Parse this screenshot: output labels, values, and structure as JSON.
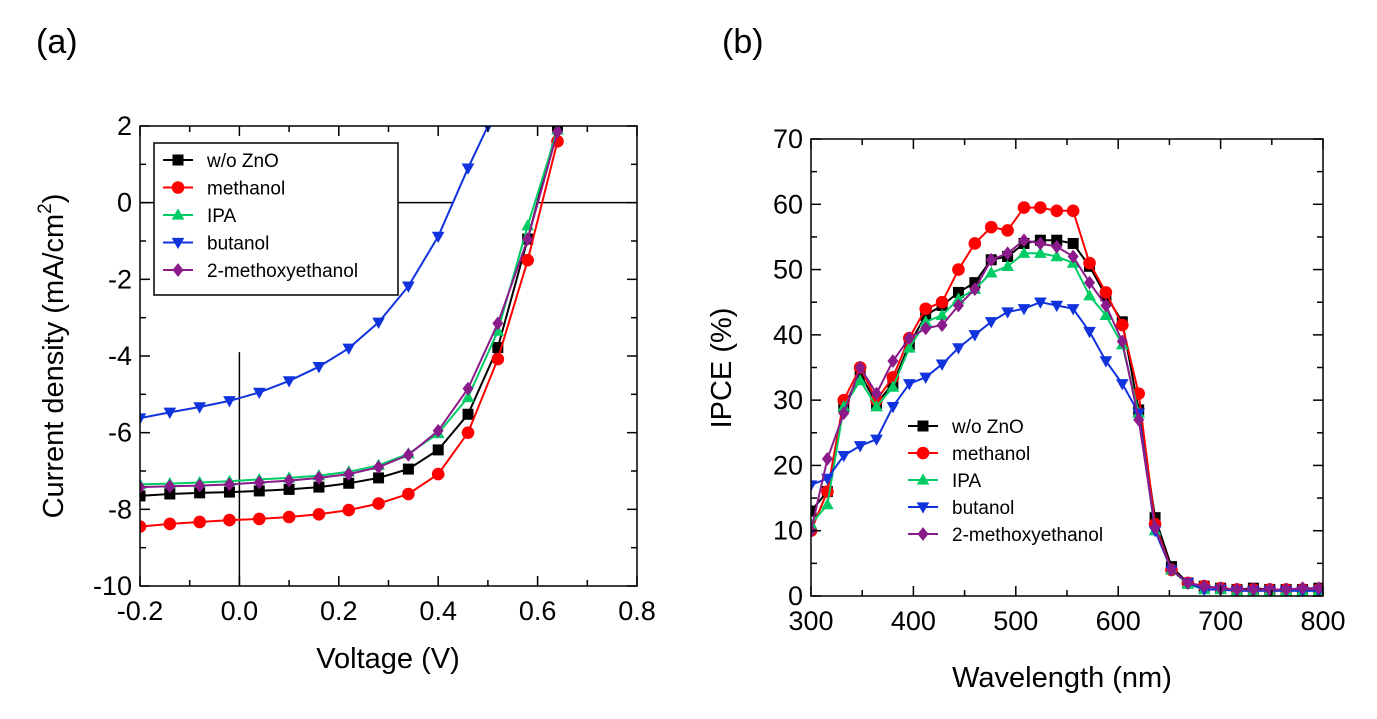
{
  "chart_data": [
    {
      "type": "line",
      "panel_label": "(a)",
      "xlabel": "Voltage (V)",
      "ylabel": "Current density (mA/cm",
      "ylabel_sup": "2",
      "ylabel_end": ")",
      "xlim": [
        -0.2,
        0.8
      ],
      "ylim": [
        -10,
        2
      ],
      "xticks": [
        "-0.2",
        "0.0",
        "0.2",
        "0.4",
        "0.6",
        "0.8"
      ],
      "xtick_values": [
        -0.2,
        0,
        0.2,
        0.4,
        0.6,
        0.8
      ],
      "yticks": [
        "-10",
        "-8",
        "-6",
        "-4",
        "-2",
        "0",
        "2"
      ],
      "ytick_values": [
        -10,
        -8,
        -6,
        -4,
        -2,
        0,
        2
      ],
      "legend_position": "top-left",
      "series": [
        {
          "name": "w/o ZnO",
          "color": "#000000",
          "marker": "square",
          "x": [
            -0.2,
            -0.14,
            -0.08,
            -0.02,
            0.04,
            0.1,
            0.16,
            0.22,
            0.28,
            0.34,
            0.4,
            0.46,
            0.52,
            0.58,
            0.64
          ],
          "y": [
            -7.65,
            -7.6,
            -7.57,
            -7.55,
            -7.52,
            -7.48,
            -7.42,
            -7.32,
            -7.18,
            -6.95,
            -6.45,
            -5.52,
            -3.78,
            -0.95,
            2.0
          ]
        },
        {
          "name": "methanol",
          "color": "#ff0000",
          "marker": "circle",
          "x": [
            -0.2,
            -0.14,
            -0.08,
            -0.02,
            0.04,
            0.1,
            0.16,
            0.22,
            0.28,
            0.34,
            0.4,
            0.46,
            0.52,
            0.58,
            0.64
          ],
          "y": [
            -8.45,
            -8.38,
            -8.33,
            -8.28,
            -8.25,
            -8.2,
            -8.13,
            -8.02,
            -7.85,
            -7.6,
            -7.08,
            -6.0,
            -4.08,
            -1.5,
            1.6
          ]
        },
        {
          "name": "IPA",
          "color": "#00cc66",
          "marker": "triangle-up",
          "x": [
            -0.2,
            -0.14,
            -0.08,
            -0.02,
            0.04,
            0.1,
            0.16,
            0.22,
            0.28,
            0.34,
            0.4,
            0.46,
            0.52,
            0.58,
            0.64
          ],
          "y": [
            -7.35,
            -7.33,
            -7.3,
            -7.27,
            -7.22,
            -7.18,
            -7.12,
            -7.02,
            -6.85,
            -6.55,
            -6.02,
            -5.08,
            -3.35,
            -0.6,
            1.9
          ]
        },
        {
          "name": "butanol",
          "color": "#1133dd",
          "marker": "triangle-down",
          "x": [
            -0.2,
            -0.14,
            -0.08,
            -0.02,
            0.04,
            0.1,
            0.16,
            0.22,
            0.28,
            0.34,
            0.4,
            0.46,
            0.5
          ],
          "y": [
            -5.62,
            -5.47,
            -5.33,
            -5.17,
            -4.95,
            -4.65,
            -4.28,
            -3.8,
            -3.12,
            -2.18,
            -0.88,
            0.9,
            2.0
          ]
        },
        {
          "name": "2-methoxyethanol",
          "color": "#8b1a8b",
          "marker": "diamond",
          "x": [
            -0.2,
            -0.14,
            -0.08,
            -0.02,
            0.04,
            0.1,
            0.16,
            0.22,
            0.28,
            0.34,
            0.4,
            0.46,
            0.52,
            0.58,
            0.64
          ],
          "y": [
            -7.42,
            -7.4,
            -7.38,
            -7.35,
            -7.3,
            -7.25,
            -7.18,
            -7.08,
            -6.9,
            -6.58,
            -5.95,
            -4.85,
            -3.15,
            -0.95,
            1.85
          ]
        }
      ]
    },
    {
      "type": "line",
      "panel_label": "(b)",
      "xlabel": "Wavelength (nm)",
      "ylabel": "IPCE (%)",
      "xlim": [
        300,
        800
      ],
      "ylim": [
        0,
        70
      ],
      "xticks": [
        "300",
        "400",
        "500",
        "600",
        "700",
        "800"
      ],
      "xtick_values": [
        300,
        400,
        500,
        600,
        700,
        800
      ],
      "yticks": [
        "0",
        "10",
        "20",
        "30",
        "40",
        "50",
        "60",
        "70"
      ],
      "ytick_values": [
        0,
        10,
        20,
        30,
        40,
        50,
        60,
        70
      ],
      "legend_position": "bottom-center",
      "series": [
        {
          "name": "w/o ZnO",
          "color": "#000000",
          "marker": "square",
          "x": [
            300,
            316,
            332,
            348,
            364,
            380,
            396,
            412,
            428,
            444,
            460,
            476,
            492,
            508,
            524,
            540,
            556,
            572,
            588,
            604,
            620,
            636,
            652,
            668,
            684,
            700,
            716,
            732,
            748,
            764,
            780,
            796
          ],
          "y": [
            13,
            16,
            29,
            34,
            29.5,
            32.5,
            38.5,
            43,
            44.5,
            46.5,
            48,
            51.5,
            52,
            54,
            54.5,
            54.5,
            54,
            50.5,
            46,
            42,
            28.5,
            12,
            4.5,
            2,
            1.5,
            1.2,
            1,
            1.2,
            1,
            1,
            1,
            1.2
          ]
        },
        {
          "name": "methanol",
          "color": "#ff0000",
          "marker": "circle",
          "x": [
            300,
            316,
            332,
            348,
            364,
            380,
            396,
            412,
            428,
            444,
            460,
            476,
            492,
            508,
            524,
            540,
            556,
            572,
            588,
            604,
            620,
            636,
            652,
            668,
            684,
            700,
            716,
            732,
            748,
            764,
            780,
            796
          ],
          "y": [
            10,
            16,
            30,
            35,
            30,
            33.5,
            39.5,
            44,
            45,
            50,
            54,
            56.5,
            56,
            59.5,
            59.5,
            59,
            59,
            51,
            46.5,
            41.5,
            31,
            11,
            4,
            2,
            1.5,
            1.2,
            1,
            1,
            1,
            1,
            1,
            1
          ]
        },
        {
          "name": "IPA",
          "color": "#00cc66",
          "marker": "triangle-up",
          "x": [
            300,
            316,
            332,
            348,
            364,
            380,
            396,
            412,
            428,
            444,
            460,
            476,
            492,
            508,
            524,
            540,
            556,
            572,
            588,
            604,
            620,
            636,
            652,
            668,
            684,
            700,
            716,
            732,
            748,
            764,
            780,
            796
          ],
          "y": [
            11,
            14,
            29,
            33,
            29,
            32,
            38,
            42,
            43,
            45.5,
            47,
            49.5,
            50.5,
            52.5,
            52.5,
            52,
            51,
            46,
            43,
            38.5,
            28,
            10,
            4,
            1.8,
            1,
            1,
            0.8,
            0.8,
            0.8,
            0.8,
            0.8,
            0.8
          ]
        },
        {
          "name": "butanol",
          "color": "#1133dd",
          "marker": "triangle-down",
          "x": [
            300,
            316,
            332,
            348,
            364,
            380,
            396,
            412,
            428,
            444,
            460,
            476,
            492,
            508,
            524,
            540,
            556,
            572,
            588,
            604,
            620,
            636,
            652,
            668,
            684,
            700,
            716,
            732,
            748,
            764,
            780,
            796
          ],
          "y": [
            17,
            18,
            21.5,
            23,
            24,
            29,
            32.5,
            33.5,
            35.5,
            38,
            40,
            42,
            43.5,
            44,
            45,
            44.5,
            44,
            40.5,
            36,
            32.5,
            28,
            10,
            4,
            2,
            1,
            1,
            0.8,
            0.8,
            0.8,
            0.8,
            0.8,
            0.8
          ]
        },
        {
          "name": "2-methoxyethanol",
          "color": "#8b1a8b",
          "marker": "diamond",
          "x": [
            300,
            316,
            332,
            348,
            364,
            380,
            396,
            412,
            428,
            444,
            460,
            476,
            492,
            508,
            524,
            540,
            556,
            572,
            588,
            604,
            620,
            636,
            652,
            668,
            684,
            700,
            716,
            732,
            748,
            764,
            780,
            796
          ],
          "y": [
            10,
            21,
            28,
            35,
            31,
            36,
            39.5,
            41,
            41.5,
            44.5,
            47,
            51.5,
            52.5,
            54.5,
            54,
            53.5,
            52,
            48,
            44.5,
            39,
            27,
            10.5,
            4,
            2,
            1.5,
            1.2,
            1,
            1,
            1,
            1,
            1.2,
            1.2
          ]
        }
      ]
    }
  ]
}
